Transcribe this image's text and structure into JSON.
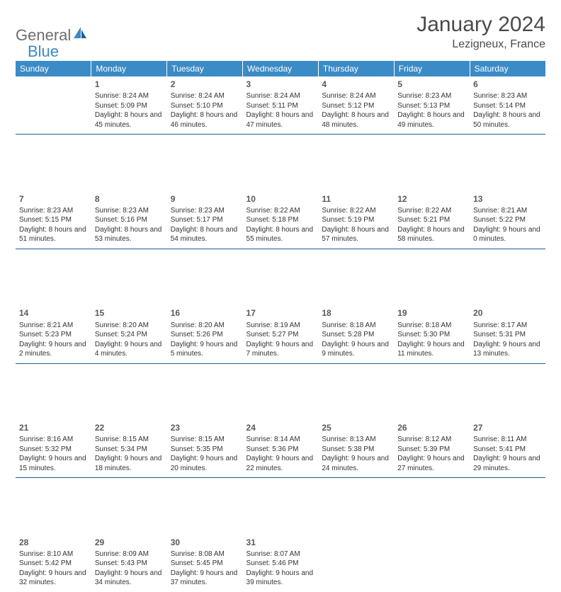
{
  "branding": {
    "logo_word1": "General",
    "logo_word2": "Blue",
    "logo_color1": "#6d6e71",
    "logo_color2": "#3b8bc6"
  },
  "header": {
    "title": "January 2024",
    "location": "Lezigneux, France"
  },
  "weekdays": [
    "Sunday",
    "Monday",
    "Tuesday",
    "Wednesday",
    "Thursday",
    "Friday",
    "Saturday"
  ],
  "colors": {
    "header_bg": "#3b8bc6",
    "header_fg": "#ffffff",
    "divider": "#205e8f",
    "text": "#333333",
    "daynum": "#59595b"
  },
  "weeks": [
    [
      {
        "day": "",
        "sunrise": "",
        "sunset": "",
        "daylight": ""
      },
      {
        "day": "1",
        "sunrise": "Sunrise: 8:24 AM",
        "sunset": "Sunset: 5:09 PM",
        "daylight": "Daylight: 8 hours and 45 minutes."
      },
      {
        "day": "2",
        "sunrise": "Sunrise: 8:24 AM",
        "sunset": "Sunset: 5:10 PM",
        "daylight": "Daylight: 8 hours and 46 minutes."
      },
      {
        "day": "3",
        "sunrise": "Sunrise: 8:24 AM",
        "sunset": "Sunset: 5:11 PM",
        "daylight": "Daylight: 8 hours and 47 minutes."
      },
      {
        "day": "4",
        "sunrise": "Sunrise: 8:24 AM",
        "sunset": "Sunset: 5:12 PM",
        "daylight": "Daylight: 8 hours and 48 minutes."
      },
      {
        "day": "5",
        "sunrise": "Sunrise: 8:23 AM",
        "sunset": "Sunset: 5:13 PM",
        "daylight": "Daylight: 8 hours and 49 minutes."
      },
      {
        "day": "6",
        "sunrise": "Sunrise: 8:23 AM",
        "sunset": "Sunset: 5:14 PM",
        "daylight": "Daylight: 8 hours and 50 minutes."
      }
    ],
    [
      {
        "day": "7",
        "sunrise": "Sunrise: 8:23 AM",
        "sunset": "Sunset: 5:15 PM",
        "daylight": "Daylight: 8 hours and 51 minutes."
      },
      {
        "day": "8",
        "sunrise": "Sunrise: 8:23 AM",
        "sunset": "Sunset: 5:16 PM",
        "daylight": "Daylight: 8 hours and 53 minutes."
      },
      {
        "day": "9",
        "sunrise": "Sunrise: 8:23 AM",
        "sunset": "Sunset: 5:17 PM",
        "daylight": "Daylight: 8 hours and 54 minutes."
      },
      {
        "day": "10",
        "sunrise": "Sunrise: 8:22 AM",
        "sunset": "Sunset: 5:18 PM",
        "daylight": "Daylight: 8 hours and 55 minutes."
      },
      {
        "day": "11",
        "sunrise": "Sunrise: 8:22 AM",
        "sunset": "Sunset: 5:19 PM",
        "daylight": "Daylight: 8 hours and 57 minutes."
      },
      {
        "day": "12",
        "sunrise": "Sunrise: 8:22 AM",
        "sunset": "Sunset: 5:21 PM",
        "daylight": "Daylight: 8 hours and 58 minutes."
      },
      {
        "day": "13",
        "sunrise": "Sunrise: 8:21 AM",
        "sunset": "Sunset: 5:22 PM",
        "daylight": "Daylight: 9 hours and 0 minutes."
      }
    ],
    [
      {
        "day": "14",
        "sunrise": "Sunrise: 8:21 AM",
        "sunset": "Sunset: 5:23 PM",
        "daylight": "Daylight: 9 hours and 2 minutes."
      },
      {
        "day": "15",
        "sunrise": "Sunrise: 8:20 AM",
        "sunset": "Sunset: 5:24 PM",
        "daylight": "Daylight: 9 hours and 4 minutes."
      },
      {
        "day": "16",
        "sunrise": "Sunrise: 8:20 AM",
        "sunset": "Sunset: 5:26 PM",
        "daylight": "Daylight: 9 hours and 5 minutes."
      },
      {
        "day": "17",
        "sunrise": "Sunrise: 8:19 AM",
        "sunset": "Sunset: 5:27 PM",
        "daylight": "Daylight: 9 hours and 7 minutes."
      },
      {
        "day": "18",
        "sunrise": "Sunrise: 8:18 AM",
        "sunset": "Sunset: 5:28 PM",
        "daylight": "Daylight: 9 hours and 9 minutes."
      },
      {
        "day": "19",
        "sunrise": "Sunrise: 8:18 AM",
        "sunset": "Sunset: 5:30 PM",
        "daylight": "Daylight: 9 hours and 11 minutes."
      },
      {
        "day": "20",
        "sunrise": "Sunrise: 8:17 AM",
        "sunset": "Sunset: 5:31 PM",
        "daylight": "Daylight: 9 hours and 13 minutes."
      }
    ],
    [
      {
        "day": "21",
        "sunrise": "Sunrise: 8:16 AM",
        "sunset": "Sunset: 5:32 PM",
        "daylight": "Daylight: 9 hours and 15 minutes."
      },
      {
        "day": "22",
        "sunrise": "Sunrise: 8:15 AM",
        "sunset": "Sunset: 5:34 PM",
        "daylight": "Daylight: 9 hours and 18 minutes."
      },
      {
        "day": "23",
        "sunrise": "Sunrise: 8:15 AM",
        "sunset": "Sunset: 5:35 PM",
        "daylight": "Daylight: 9 hours and 20 minutes."
      },
      {
        "day": "24",
        "sunrise": "Sunrise: 8:14 AM",
        "sunset": "Sunset: 5:36 PM",
        "daylight": "Daylight: 9 hours and 22 minutes."
      },
      {
        "day": "25",
        "sunrise": "Sunrise: 8:13 AM",
        "sunset": "Sunset: 5:38 PM",
        "daylight": "Daylight: 9 hours and 24 minutes."
      },
      {
        "day": "26",
        "sunrise": "Sunrise: 8:12 AM",
        "sunset": "Sunset: 5:39 PM",
        "daylight": "Daylight: 9 hours and 27 minutes."
      },
      {
        "day": "27",
        "sunrise": "Sunrise: 8:11 AM",
        "sunset": "Sunset: 5:41 PM",
        "daylight": "Daylight: 9 hours and 29 minutes."
      }
    ],
    [
      {
        "day": "28",
        "sunrise": "Sunrise: 8:10 AM",
        "sunset": "Sunset: 5:42 PM",
        "daylight": "Daylight: 9 hours and 32 minutes."
      },
      {
        "day": "29",
        "sunrise": "Sunrise: 8:09 AM",
        "sunset": "Sunset: 5:43 PM",
        "daylight": "Daylight: 9 hours and 34 minutes."
      },
      {
        "day": "30",
        "sunrise": "Sunrise: 8:08 AM",
        "sunset": "Sunset: 5:45 PM",
        "daylight": "Daylight: 9 hours and 37 minutes."
      },
      {
        "day": "31",
        "sunrise": "Sunrise: 8:07 AM",
        "sunset": "Sunset: 5:46 PM",
        "daylight": "Daylight: 9 hours and 39 minutes."
      },
      {
        "day": "",
        "sunrise": "",
        "sunset": "",
        "daylight": ""
      },
      {
        "day": "",
        "sunrise": "",
        "sunset": "",
        "daylight": ""
      },
      {
        "day": "",
        "sunrise": "",
        "sunset": "",
        "daylight": ""
      }
    ]
  ]
}
